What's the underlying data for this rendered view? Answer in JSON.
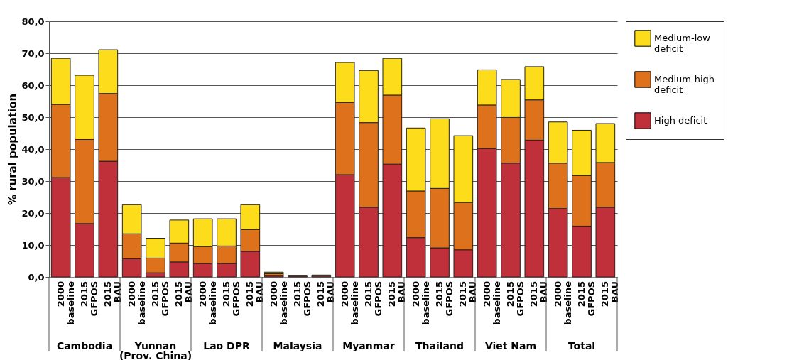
{
  "chart_data": {
    "type": "bar",
    "stacked": true,
    "ylabel": "% rural population",
    "categories": [
      "2000\nbaseline",
      "2015\nGFPOS",
      "2015\nBAU",
      "2000\nbaseline",
      "2015\nGFPOS",
      "2015\nBAU",
      "2000\nbaseline",
      "2015\nGFPOS",
      "2015\nBAU",
      "2000\nbaseline",
      "2015\nGFPOS",
      "2015\nBAU",
      "2000\nbaseline",
      "2015\nGFPOS",
      "2015\nBAU",
      "2000\nbaseline",
      "2015\nGFPOS",
      "2015\nBAU",
      "2000\nbaseline",
      "2015\nGFPOS",
      "2015\nBAU",
      "2000\nbaseline",
      "2015\nGFPOS",
      "2015\nBAU"
    ],
    "series": [
      {
        "name": "High deficit",
        "color": "#c0303a",
        "values": [
          31.1,
          16.7,
          36.2,
          5.7,
          1.3,
          4.7,
          4.2,
          4.2,
          8.0,
          0.5,
          0.3,
          0.4,
          32.0,
          21.8,
          35.3,
          12.3,
          9.1,
          8.5,
          40.2,
          35.6,
          42.8,
          21.4,
          15.9,
          21.8
        ]
      },
      {
        "name": "Medium-high deficit",
        "color": "#de711c",
        "values": [
          22.9,
          26.3,
          21.2,
          7.8,
          4.6,
          5.9,
          5.3,
          5.5,
          6.8,
          0.5,
          0.1,
          null,
          22.6,
          26.5,
          21.6,
          14.6,
          18.6,
          14.8,
          13.6,
          14.3,
          12.6,
          14.2,
          15.8,
          14.0
        ]
      },
      {
        "name": "Medium-low deficit",
        "color": "#fddc1c",
        "values": [
          14.4,
          20.1,
          13.7,
          9.1,
          6.2,
          7.2,
          8.7,
          8.5,
          7.8,
          0.5,
          0.1,
          0.2,
          12.5,
          16.3,
          11.5,
          19.7,
          21.8,
          20.9,
          11.0,
          11.9,
          10.4,
          12.9,
          14.2,
          12.2
        ]
      }
    ],
    "ylim": [
      0,
      80
    ],
    "yticks": [
      {
        "value": 0,
        "label": "0,0"
      },
      {
        "value": 10,
        "label": "10,0"
      },
      {
        "value": 20,
        "label": "20,0"
      },
      {
        "value": 30,
        "label": "30,0"
      },
      {
        "value": 40,
        "label": "40,0"
      },
      {
        "value": 50,
        "label": "50,0"
      },
      {
        "value": 60,
        "label": "60,0"
      },
      {
        "value": 70,
        "label": "70,0"
      },
      {
        "value": 80,
        "label": "80,0"
      }
    ],
    "annotations": [
      "Cambodia",
      "Yunnan\n(Prov. China)",
      "Lao DPR",
      "Malaysia",
      "Myanmar",
      "Thailand",
      "Viet Nam",
      "Total"
    ],
    "grid": "y",
    "legend": "right"
  }
}
